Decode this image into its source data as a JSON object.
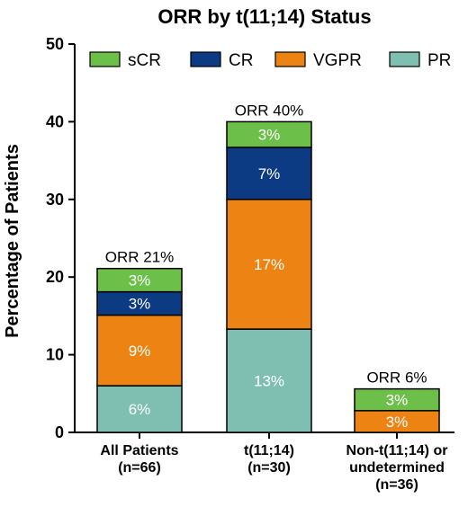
{
  "chart_data": {
    "type": "bar",
    "stacked": true,
    "title": "ORR by t(11;14) Status",
    "xlabel": "",
    "ylabel": "Percentage of  Patients",
    "ylim": [
      0,
      50
    ],
    "yticks": [
      "0",
      "10",
      "20",
      "30",
      "40",
      "50"
    ],
    "grid": false,
    "legend_position": "top",
    "categories": [
      [
        "All Patients",
        "(n=66)"
      ],
      [
        "t(11;14)",
        "(n=30)"
      ],
      [
        "Non-t(11;14) or",
        "undetermined",
        "(n=36)"
      ]
    ],
    "totals": [
      21,
      40,
      6
    ],
    "total_labels": [
      "ORR 21%",
      "ORR 40%",
      "ORR 6%"
    ],
    "series": [
      {
        "name": "PR",
        "color": "#7fbfb2",
        "values": [
          6,
          13.3,
          0
        ],
        "labels": [
          "6%",
          "13%",
          ""
        ]
      },
      {
        "name": "VGPR",
        "color": "#ec8313",
        "values": [
          9.1,
          16.7,
          2.8
        ],
        "labels": [
          "9%",
          "17%",
          "3%"
        ]
      },
      {
        "name": "CR",
        "color": "#0c3a83",
        "values": [
          3.0,
          6.7,
          0
        ],
        "labels": [
          "3%",
          "7%",
          ""
        ]
      },
      {
        "name": "sCR",
        "color": "#6cc04a",
        "values": [
          3.0,
          3.3,
          2.8
        ],
        "labels": [
          "3%",
          "3%",
          "3%"
        ]
      }
    ],
    "legend_order": [
      "sCR",
      "CR",
      "VGPR",
      "PR"
    ]
  }
}
